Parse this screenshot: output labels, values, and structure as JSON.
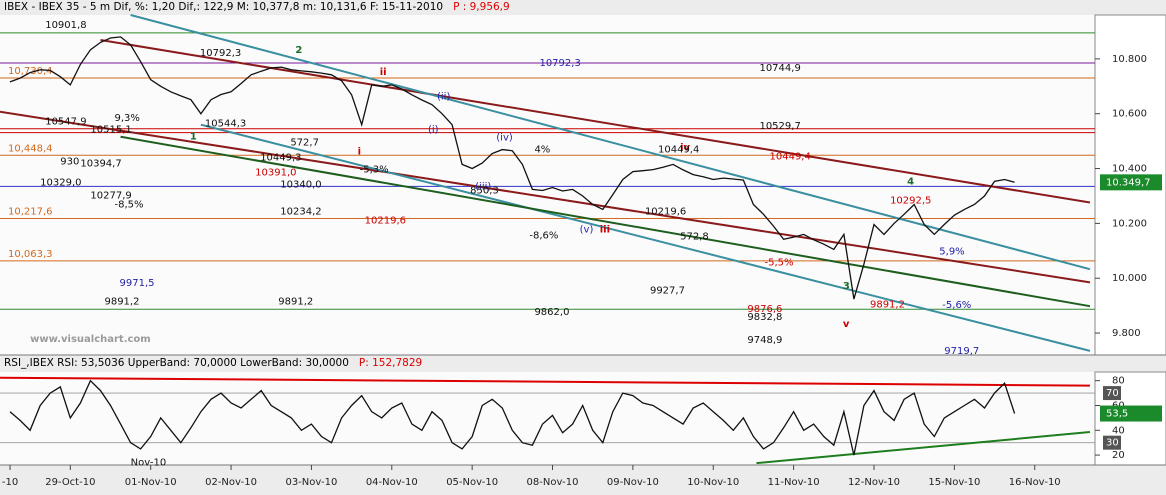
{
  "chart_data": [
    {
      "type": "line",
      "title": "IBEX - IBEX 35 -  5 m Dif, %: 1,20 Dif,: 122,9 M: 10,377,8 m: 10,131,6 F: 15-11-2010",
      "title_note": "P : 9,956,9",
      "color": "#111111",
      "values": [
        10716,
        10730,
        10750,
        10760,
        10758,
        10735,
        10705,
        10780,
        10833,
        10860,
        10876,
        10880,
        10851,
        10790,
        10724,
        10700,
        10680,
        10665,
        10651,
        10600,
        10651,
        10670,
        10680,
        10710,
        10742,
        10755,
        10767,
        10770,
        10760,
        10756,
        10753,
        10748,
        10742,
        10720,
        10669,
        10560,
        10705,
        10700,
        10705,
        10690,
        10669,
        10650,
        10633,
        10600,
        10560,
        10415,
        10400,
        10420,
        10455,
        10469,
        10465,
        10415,
        10324,
        10320,
        10331,
        10318,
        10324,
        10300,
        10269,
        10251,
        10305,
        10360,
        10389,
        10392,
        10396,
        10405,
        10415,
        10395,
        10378,
        10370,
        10360,
        10365,
        10362,
        10358,
        10269,
        10233,
        10190,
        10142,
        10150,
        10160,
        10140,
        10124,
        10105,
        10160,
        9924,
        10051,
        10196,
        10160,
        10200,
        10233,
        10269,
        10196,
        10160,
        10196,
        10230,
        10251,
        10269,
        10300,
        10353,
        10360,
        10349.7
      ],
      "xlim": [
        -1,
        108
      ],
      "ylim": [
        9720,
        10960
      ],
      "yticks": [
        {
          "value": 9800,
          "label": "9.800"
        },
        {
          "value": 10000,
          "label": "10.000"
        },
        {
          "value": 10200,
          "label": "10.200"
        },
        {
          "value": 10400,
          "label": "10.400"
        },
        {
          "value": 10600,
          "label": "10.600"
        },
        {
          "value": 10800,
          "label": "10.800"
        }
      ],
      "last": {
        "value": 10349.7,
        "label": "10.349,7"
      },
      "last_color": "#1a8a2a",
      "levels": [
        {
          "value": 10895,
          "color": "#2e8b2e"
        },
        {
          "value": 10785,
          "color": "#7a1a9a"
        },
        {
          "value": 10730.4,
          "color": "#d2691e",
          "label": "10,730,4"
        },
        {
          "value": 10545,
          "color": "#cc0000"
        },
        {
          "value": 10531,
          "color": "#cc0000"
        },
        {
          "value": 10448.4,
          "color": "#d2691e",
          "label": "10,448,4"
        },
        {
          "value": 10335,
          "color": "#3333cc"
        },
        {
          "value": 10217.6,
          "color": "#d2691e",
          "label": "10,217,6"
        },
        {
          "value": 10063.3,
          "color": "#d2691e",
          "label": "10,063,3"
        },
        {
          "value": 9887,
          "color": "#2e8b2e"
        }
      ],
      "trendlines": [
        {
          "color": "#8b1a1a",
          "x": [
            9,
            107.5
          ],
          "y": [
            10869,
            10276
          ]
        },
        {
          "color": "#8b1a1a",
          "x": [
            -1,
            107.5
          ],
          "y": [
            10607,
            9985
          ]
        },
        {
          "color": "#3a8fa0",
          "x": [
            12,
            107.5
          ],
          "y": [
            10960,
            10033
          ]
        },
        {
          "color": "#3a8fa0",
          "x": [
            19,
            107.5
          ],
          "y": [
            10560,
            9735
          ]
        },
        {
          "color": "#1e5e1e",
          "x": [
            11,
            107.5
          ],
          "y": [
            10516,
            9898
          ]
        }
      ],
      "annotations": [
        {
          "text": "2",
          "x": 28.4,
          "y": 10833,
          "color": "#1d6b2a",
          "kind": "wave"
        },
        {
          "text": "1",
          "x": 17.9,
          "y": 10516,
          "color": "#1d6b2a",
          "kind": "wave"
        },
        {
          "text": "3",
          "x": 82.9,
          "y": 9971,
          "color": "#1d6b2a",
          "kind": "wave"
        },
        {
          "text": "4",
          "x": 89.3,
          "y": 10353,
          "color": "#1d6b2a",
          "kind": "wave"
        },
        {
          "text": "i",
          "x": 34.6,
          "y": 10462,
          "color": "#cc0000",
          "kind": "minor"
        },
        {
          "text": "ii",
          "x": 36.8,
          "y": 10753,
          "color": "#cc0000",
          "kind": "minor"
        },
        {
          "text": "iii",
          "x": 58.7,
          "y": 10178,
          "color": "#cc0000",
          "kind": "minor"
        },
        {
          "text": "iv",
          "x": 66.7,
          "y": 10476,
          "color": "#cc0000",
          "kind": "minor"
        },
        {
          "text": "v",
          "x": 82.9,
          "y": 9833,
          "color": "#cc0000",
          "kind": "minor"
        },
        {
          "text": "(i)",
          "x": 41.6,
          "y": 10542,
          "color": "#2222aa",
          "kind": "label"
        },
        {
          "text": "(ii)",
          "x": 42.5,
          "y": 10662,
          "color": "#2222aa",
          "kind": "label"
        },
        {
          "text": "(iii)",
          "x": 46.3,
          "y": 10335,
          "color": "#2222aa",
          "kind": "label"
        },
        {
          "text": "(iv)",
          "x": 48.4,
          "y": 10513,
          "color": "#2222aa",
          "kind": "label"
        },
        {
          "text": "(v)",
          "x": 56.7,
          "y": 10178,
          "color": "#2222aa",
          "kind": "label"
        },
        {
          "text": "10792,3",
          "x": 52.7,
          "y": 10785,
          "color": "#2222aa",
          "kind": "label"
        },
        {
          "text": "9862,0",
          "x": 52.2,
          "y": 9876,
          "color": "#111111",
          "kind": "label"
        },
        {
          "text": "10449,4",
          "x": 64.5,
          "y": 10469,
          "color": "#111111",
          "kind": "label"
        },
        {
          "text": "10449,4",
          "x": 75.6,
          "y": 10444,
          "color": "#cc0000",
          "kind": "label"
        },
        {
          "text": "10744,9",
          "x": 74.6,
          "y": 10767,
          "color": "#111111",
          "kind": "label"
        },
        {
          "text": "10529,7",
          "x": 74.6,
          "y": 10556,
          "color": "#111111",
          "kind": "label"
        },
        {
          "text": "9748,9",
          "x": 73.4,
          "y": 9775,
          "color": "#111111",
          "kind": "label"
        },
        {
          "text": "9927,7",
          "x": 63.7,
          "y": 9956,
          "color": "#111111",
          "kind": "label"
        },
        {
          "text": "9876,6",
          "x": 73.4,
          "y": 9887,
          "color": "#cc0000",
          "kind": "label"
        },
        {
          "text": "9832,8",
          "x": 73.4,
          "y": 9858,
          "color": "#111111",
          "kind": "label"
        },
        {
          "text": "9719,7",
          "x": 93,
          "y": 9735,
          "color": "#2222aa",
          "kind": "label"
        },
        {
          "text": "10292,5",
          "x": 87.6,
          "y": 10284,
          "color": "#cc0000",
          "kind": "label"
        },
        {
          "text": "9891,2",
          "x": 9.4,
          "y": 9916,
          "color": "#111111",
          "kind": "label"
        },
        {
          "text": "9891,2",
          "x": 26.7,
          "y": 9916,
          "color": "#111111",
          "kind": "label"
        },
        {
          "text": "9891,2",
          "x": 85.6,
          "y": 9905,
          "color": "#cc0000",
          "kind": "label"
        },
        {
          "text": "9971,5",
          "x": 10.9,
          "y": 9982,
          "color": "#2222aa",
          "kind": "label"
        },
        {
          "text": "10792,3",
          "x": 18.9,
          "y": 10822,
          "color": "#111111",
          "kind": "label"
        },
        {
          "text": "10219,6",
          "x": 35.3,
          "y": 10211,
          "color": "#cc0000",
          "kind": "label"
        },
        {
          "text": "10219,6",
          "x": 63.2,
          "y": 10244,
          "color": "#111111",
          "kind": "label"
        },
        {
          "text": "10234,2",
          "x": 26.9,
          "y": 10244,
          "color": "#111111",
          "kind": "label"
        },
        {
          "text": "10340,0",
          "x": 26.9,
          "y": 10342,
          "color": "#111111",
          "kind": "label"
        },
        {
          "text": "10391,0",
          "x": 24.4,
          "y": 10385,
          "color": "#cc0000",
          "kind": "label"
        },
        {
          "text": "10449,3",
          "x": 24.9,
          "y": 10440,
          "color": "#111111",
          "kind": "label"
        },
        {
          "text": "10544,3",
          "x": 19.4,
          "y": 10564,
          "color": "#111111",
          "kind": "label"
        },
        {
          "text": "10547,9",
          "x": 3.5,
          "y": 10571,
          "color": "#111111",
          "kind": "label"
        },
        {
          "text": "10515,1",
          "x": 8,
          "y": 10542,
          "color": "#111111",
          "kind": "label"
        },
        {
          "text": "10394,7",
          "x": 7,
          "y": 10418,
          "color": "#111111",
          "kind": "label"
        },
        {
          "text": "10329,0",
          "x": 3,
          "y": 10349,
          "color": "#111111",
          "kind": "label"
        },
        {
          "text": "10277,9",
          "x": 8,
          "y": 10302,
          "color": "#111111",
          "kind": "label"
        },
        {
          "text": "10901,8",
          "x": 3.5,
          "y": 10924,
          "color": "#111111",
          "kind": "label"
        },
        {
          "text": "-8,6%",
          "x": 51.7,
          "y": 10156,
          "color": "#111111",
          "kind": "label"
        },
        {
          "text": "-5,5%",
          "x": 75.1,
          "y": 10058,
          "color": "#cc0000",
          "kind": "label"
        },
        {
          "text": "5,9%",
          "x": 92.5,
          "y": 10098,
          "color": "#2222aa",
          "kind": "label"
        },
        {
          "text": "-5,6%",
          "x": 92.8,
          "y": 9902,
          "color": "#2222aa",
          "kind": "label"
        },
        {
          "text": "-5,3%",
          "x": 34.8,
          "y": 10396,
          "color": "#111111",
          "kind": "label"
        },
        {
          "text": "4%",
          "x": 52.2,
          "y": 10469,
          "color": "#111111",
          "kind": "label"
        },
        {
          "text": "9,3%",
          "x": 10.4,
          "y": 10585,
          "color": "#111111",
          "kind": "label"
        },
        {
          "text": "-8,5%",
          "x": 10.4,
          "y": 10269,
          "color": "#111111",
          "kind": "label"
        },
        {
          "text": "572,7",
          "x": 27.9,
          "y": 10495,
          "color": "#111111",
          "kind": "label"
        },
        {
          "text": "572,8",
          "x": 66.7,
          "y": 10153,
          "color": "#111111",
          "kind": "label"
        },
        {
          "text": "930",
          "x": 5,
          "y": 10425,
          "color": "#111111",
          "kind": "label"
        },
        {
          "text": "850,3",
          "x": 45.8,
          "y": 10320,
          "color": "#111111",
          "kind": "label"
        },
        {
          "text": "www.visualchart.com",
          "x": 2,
          "y": 9778,
          "color": "#9a9a9a",
          "kind": "watermark"
        }
      ]
    },
    {
      "type": "line",
      "title": "RSI_,IBEX RSI: 53,5036 UpperBand: 70,0000 LowerBand: 30,0000",
      "title_note": "P: 152,7829",
      "color": "#111111",
      "values": [
        55,
        48,
        40,
        60,
        70,
        75,
        50,
        62,
        80,
        72,
        60,
        45,
        30,
        25,
        35,
        50,
        40,
        30,
        42,
        55,
        65,
        70,
        62,
        58,
        65,
        72,
        60,
        55,
        50,
        40,
        45,
        35,
        30,
        50,
        60,
        68,
        55,
        50,
        58,
        62,
        45,
        40,
        55,
        48,
        30,
        25,
        35,
        60,
        65,
        58,
        40,
        30,
        28,
        45,
        52,
        38,
        45,
        60,
        40,
        30,
        55,
        70,
        68,
        62,
        60,
        55,
        50,
        45,
        58,
        62,
        55,
        48,
        40,
        50,
        35,
        25,
        30,
        42,
        55,
        40,
        45,
        35,
        28,
        55,
        20,
        60,
        72,
        55,
        48,
        65,
        70,
        45,
        35,
        50,
        55,
        60,
        65,
        58,
        70,
        78,
        53.5
      ],
      "ylim": [
        12,
        87
      ],
      "yticks": [
        20,
        40,
        60,
        80
      ],
      "bands": [
        70,
        30
      ],
      "last": {
        "value": 53.5,
        "label": "53,5"
      },
      "last_color": "#1a8a2a",
      "trendlines": [
        {
          "color": "#dd0000",
          "x": [
            -1,
            107.5
          ],
          "y": [
            82.4,
            76
          ]
        },
        {
          "color": "#1e7e1e",
          "x": [
            74.3,
            107.5
          ],
          "y": [
            13.5,
            38.6
          ]
        }
      ],
      "annotations": [
        {
          "text": "Nov-10",
          "x": 12,
          "y": 14,
          "color": "#111111",
          "kind": "label"
        }
      ],
      "xticks": [
        {
          "value": 0,
          "label": "-10"
        },
        {
          "value": 6,
          "label": "29-Oct-10"
        },
        {
          "value": 14,
          "label": "01-Nov-10"
        },
        {
          "value": 22,
          "label": "02-Nov-10"
        },
        {
          "value": 30,
          "label": "03-Nov-10"
        },
        {
          "value": 38,
          "label": "04-Nov-10"
        },
        {
          "value": 46,
          "label": "05-Nov-10"
        },
        {
          "value": 54,
          "label": "08-Nov-10"
        },
        {
          "value": 62,
          "label": "09-Nov-10"
        },
        {
          "value": 70,
          "label": "10-Nov-10"
        },
        {
          "value": 78,
          "label": "11-Nov-10"
        },
        {
          "value": 86,
          "label": "12-Nov-10"
        },
        {
          "value": 94,
          "label": "15-Nov-10"
        },
        {
          "value": 102,
          "label": "16-Nov-10"
        }
      ]
    }
  ]
}
